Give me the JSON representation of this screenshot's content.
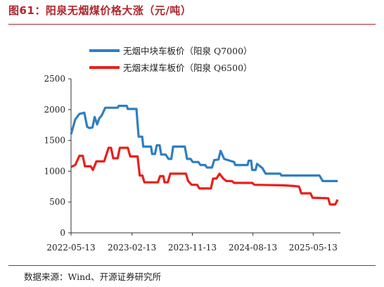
{
  "header": {
    "title": "图61：阳泉无烟煤价格大涨（元/吨）"
  },
  "footer": {
    "source": "数据来源：Wind、开源证券研究所"
  },
  "colors": {
    "accent": "#b0262c",
    "series_blue": "#2f7fc1",
    "series_red": "#e8201a"
  },
  "chart_data": {
    "type": "line",
    "ylim": [
      0,
      2500
    ],
    "yticks": [
      0,
      500,
      1000,
      1500,
      2000,
      2500
    ],
    "xlim": [
      "2022-05-13",
      "2025-09-13"
    ],
    "xticks": [
      "2022-05-13",
      "2023-02-13",
      "2023-11-13",
      "2024-08-13",
      "2025-05-13"
    ],
    "legend_position": "top",
    "grid": false,
    "series": [
      {
        "name": "无烟中块车板价（阳泉 Q7000）",
        "color": "#2f7fc1",
        "points": [
          [
            "2022-05-13",
            1600
          ],
          [
            "2022-06-01",
            1840
          ],
          [
            "2022-06-20",
            1930
          ],
          [
            "2022-07-12",
            1950
          ],
          [
            "2022-07-25",
            1720
          ],
          [
            "2022-08-05",
            1700
          ],
          [
            "2022-08-18",
            1710
          ],
          [
            "2022-08-28",
            1880
          ],
          [
            "2022-09-08",
            1760
          ],
          [
            "2022-09-18",
            1860
          ],
          [
            "2022-09-28",
            1900
          ],
          [
            "2022-10-15",
            2030
          ],
          [
            "2022-12-10",
            2030
          ],
          [
            "2022-12-15",
            2060
          ],
          [
            "2023-01-20",
            2060
          ],
          [
            "2023-01-25",
            2010
          ],
          [
            "2023-03-05",
            2010
          ],
          [
            "2023-03-15",
            1560
          ],
          [
            "2023-03-31",
            1560
          ],
          [
            "2023-04-05",
            1400
          ],
          [
            "2023-05-10",
            1400
          ],
          [
            "2023-05-15",
            1280
          ],
          [
            "2023-05-28",
            1280
          ],
          [
            "2023-06-05",
            1420
          ],
          [
            "2023-06-18",
            1420
          ],
          [
            "2023-06-25",
            1270
          ],
          [
            "2023-07-15",
            1270
          ],
          [
            "2023-07-28",
            1200
          ],
          [
            "2023-08-10",
            1200
          ],
          [
            "2023-08-18",
            1400
          ],
          [
            "2023-10-10",
            1400
          ],
          [
            "2023-10-20",
            1200
          ],
          [
            "2023-11-05",
            1200
          ],
          [
            "2023-11-15",
            1150
          ],
          [
            "2023-12-10",
            1150
          ],
          [
            "2023-12-20",
            1100
          ],
          [
            "2024-01-10",
            1100
          ],
          [
            "2024-01-18",
            1060
          ],
          [
            "2024-02-10",
            1060
          ],
          [
            "2024-02-20",
            1180
          ],
          [
            "2024-03-10",
            1190
          ],
          [
            "2024-03-20",
            1330
          ],
          [
            "2024-04-05",
            1200
          ],
          [
            "2024-05-01",
            1170
          ],
          [
            "2024-05-20",
            1150
          ],
          [
            "2024-05-25",
            1100
          ],
          [
            "2024-07-20",
            1100
          ],
          [
            "2024-07-25",
            1170
          ],
          [
            "2024-08-05",
            1170
          ],
          [
            "2024-08-10",
            1020
          ],
          [
            "2024-08-25",
            1020
          ],
          [
            "2024-09-01",
            1120
          ],
          [
            "2024-09-25",
            1050
          ],
          [
            "2024-10-10",
            960
          ],
          [
            "2024-12-15",
            960
          ],
          [
            "2024-12-20",
            930
          ],
          [
            "2025-06-10",
            930
          ],
          [
            "2025-06-25",
            840
          ],
          [
            "2025-09-01",
            840
          ]
        ]
      },
      {
        "name": "无烟末煤车板价（阳泉 Q6500）",
        "color": "#e8201a",
        "points": [
          [
            "2022-05-13",
            1070
          ],
          [
            "2022-06-01",
            1100
          ],
          [
            "2022-06-20",
            1250
          ],
          [
            "2022-07-05",
            1250
          ],
          [
            "2022-07-15",
            1080
          ],
          [
            "2022-08-10",
            1080
          ],
          [
            "2022-08-20",
            1020
          ],
          [
            "2022-09-05",
            1160
          ],
          [
            "2022-10-10",
            1160
          ],
          [
            "2022-10-30",
            1380
          ],
          [
            "2022-11-10",
            1380
          ],
          [
            "2022-11-20",
            1210
          ],
          [
            "2022-12-10",
            1210
          ],
          [
            "2022-12-20",
            1380
          ],
          [
            "2023-01-25",
            1380
          ],
          [
            "2023-02-05",
            1240
          ],
          [
            "2023-03-10",
            1240
          ],
          [
            "2023-03-20",
            930
          ],
          [
            "2023-04-01",
            930
          ],
          [
            "2023-04-10",
            820
          ],
          [
            "2023-06-10",
            820
          ],
          [
            "2023-06-20",
            920
          ],
          [
            "2023-07-05",
            920
          ],
          [
            "2023-07-10",
            820
          ],
          [
            "2023-07-25",
            820
          ],
          [
            "2023-08-05",
            960
          ],
          [
            "2023-10-15",
            960
          ],
          [
            "2023-10-25",
            840
          ],
          [
            "2023-11-10",
            780
          ],
          [
            "2023-12-05",
            780
          ],
          [
            "2023-12-15",
            720
          ],
          [
            "2024-02-05",
            720
          ],
          [
            "2024-02-15",
            880
          ],
          [
            "2024-03-01",
            880
          ],
          [
            "2024-03-15",
            960
          ],
          [
            "2024-04-01",
            880
          ],
          [
            "2024-04-15",
            840
          ],
          [
            "2024-05-10",
            840
          ],
          [
            "2024-05-20",
            810
          ],
          [
            "2024-08-10",
            810
          ],
          [
            "2024-08-20",
            780
          ],
          [
            "2024-12-31",
            770
          ],
          [
            "2025-02-15",
            760
          ],
          [
            "2025-03-10",
            750
          ],
          [
            "2025-03-20",
            640
          ],
          [
            "2025-05-01",
            640
          ],
          [
            "2025-05-10",
            570
          ],
          [
            "2025-07-20",
            560
          ],
          [
            "2025-07-28",
            460
          ],
          [
            "2025-08-20",
            460
          ],
          [
            "2025-09-01",
            540
          ]
        ]
      }
    ]
  }
}
